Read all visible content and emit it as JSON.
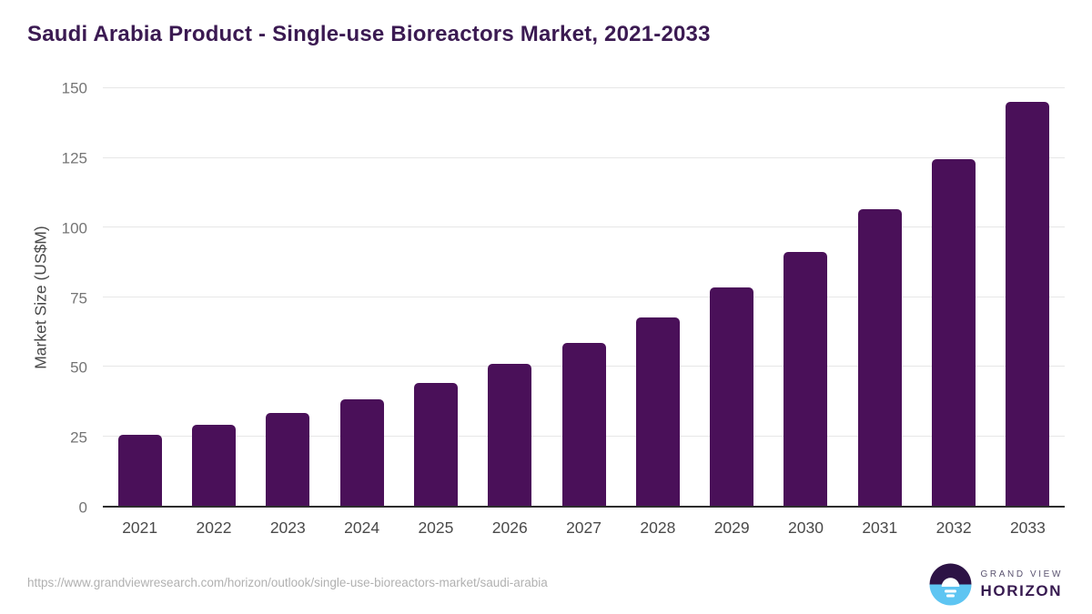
{
  "chart_data": {
    "type": "bar",
    "title": "Saudi Arabia Product - Single-use Bioreactors Market, 2021-2033",
    "categories": [
      "2021",
      "2022",
      "2023",
      "2024",
      "2025",
      "2026",
      "2027",
      "2028",
      "2029",
      "2030",
      "2031",
      "2032",
      "2033"
    ],
    "values": [
      25.6,
      29.2,
      33.5,
      38.4,
      44.2,
      50.9,
      58.5,
      67.6,
      78.3,
      91.2,
      106.5,
      124.4,
      145.2
    ],
    "xlabel": "",
    "ylabel": "Market Size (US$M)",
    "ylim": [
      0,
      150
    ],
    "yticks": [
      0,
      25,
      50,
      75,
      100,
      125,
      150
    ],
    "grid": true,
    "legend": false,
    "bar_color": "#4a1059"
  },
  "colors": {
    "bar": "#4a1059",
    "title_text": "#3b1a52",
    "axis_line": "#2d2d2d",
    "gridline": "#e7e7e7",
    "tick_text": "#757575",
    "brand_purple": "#371a50",
    "brand_blue": "#5ec5f2"
  },
  "footer": {
    "source_url": "https://www.grandviewresearch.com/horizon/outlook/single-use-bioreactors-market/saudi-arabia",
    "brand": {
      "name_top": "GRAND VIEW",
      "name_bottom": "HORIZON",
      "icon": "horizon-sunrise-icon"
    }
  }
}
